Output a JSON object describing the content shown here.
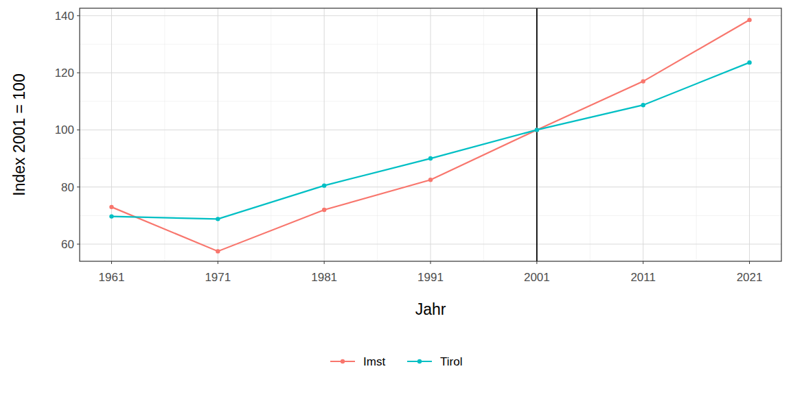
{
  "chart_data": {
    "type": "line",
    "x_label": "Jahr",
    "y_label": "Index 2001 = 100",
    "x": [
      1961,
      1971,
      1981,
      1991,
      2001,
      2011,
      2021
    ],
    "series": [
      {
        "name": "Imst",
        "color": "#F8766D",
        "marker": "circle",
        "values": [
          73,
          57.5,
          72,
          82.5,
          100,
          117,
          138.5
        ]
      },
      {
        "name": "Tirol",
        "color": "#00BFC4",
        "marker": "circle",
        "values": [
          69.7,
          68.8,
          80.5,
          90,
          100,
          108.7,
          123.6
        ]
      }
    ],
    "xlim": [
      1958,
      2024
    ],
    "ylim": [
      54,
      142.6
    ],
    "xticks": [
      1961,
      1971,
      1981,
      1991,
      2001,
      2011,
      2021
    ],
    "yticks": [
      60,
      80,
      100,
      120,
      140
    ],
    "vlines": [
      2001
    ],
    "grid": true,
    "legend": "bottom"
  }
}
